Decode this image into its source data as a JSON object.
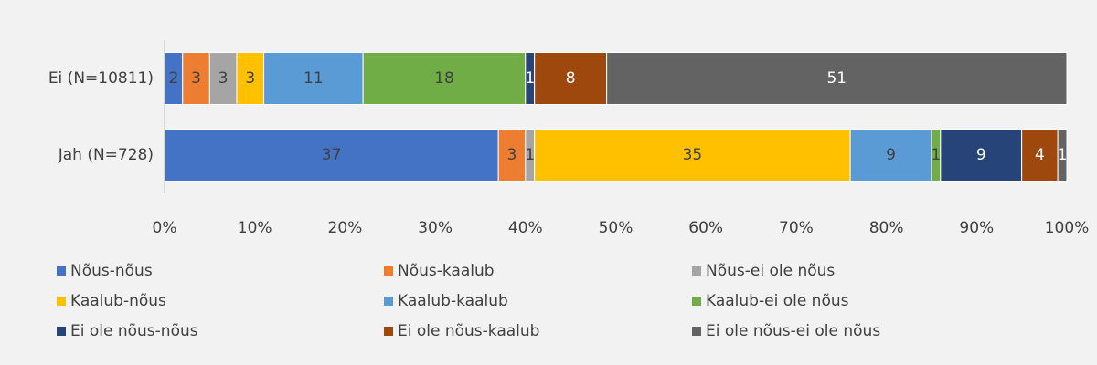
{
  "chart_data": {
    "type": "stacked_bar_horizontal",
    "categories": [
      "Ei (N=10811)",
      "Jah (N=728)"
    ],
    "series": [
      {
        "name": "Nõus-nõus",
        "color": "#4472c4",
        "values": [
          2,
          37
        ]
      },
      {
        "name": "Nõus-kaalub",
        "color": "#ed7d31",
        "values": [
          3,
          3
        ]
      },
      {
        "name": "Nõus-ei ole nõus",
        "color": "#a5a5a5",
        "values": [
          3,
          1
        ]
      },
      {
        "name": "Kaalub-nõus",
        "color": "#ffc000",
        "values": [
          3,
          35
        ]
      },
      {
        "name": "Kaalub-kaalub",
        "color": "#5b9bd5",
        "values": [
          11,
          9
        ]
      },
      {
        "name": "Kaalub-ei ole nõus",
        "color": "#70ad47",
        "values": [
          18,
          1
        ]
      },
      {
        "name": "Ei ole nõus-nõus",
        "color": "#264478",
        "values": [
          1,
          9
        ]
      },
      {
        "name": "Ei ole nõus-kaalub",
        "color": "#9e480e",
        "values": [
          8,
          4
        ]
      },
      {
        "name": "Ei ole nõus-ei ole nõus",
        "color": "#636363",
        "values": [
          51,
          1
        ]
      }
    ],
    "xlim": [
      0,
      100
    ],
    "xticks": [
      {
        "value": 0,
        "label": "0%"
      },
      {
        "value": 10,
        "label": "10%"
      },
      {
        "value": 20,
        "label": "20%"
      },
      {
        "value": 30,
        "label": "30%"
      },
      {
        "value": 40,
        "label": "40%"
      },
      {
        "value": 50,
        "label": "50%"
      },
      {
        "value": 60,
        "label": "60%"
      },
      {
        "value": 70,
        "label": "70%"
      },
      {
        "value": 80,
        "label": "80%"
      },
      {
        "value": 90,
        "label": "90%"
      },
      {
        "value": 100,
        "label": "100%"
      }
    ],
    "grid": false,
    "legend": "bottom"
  }
}
